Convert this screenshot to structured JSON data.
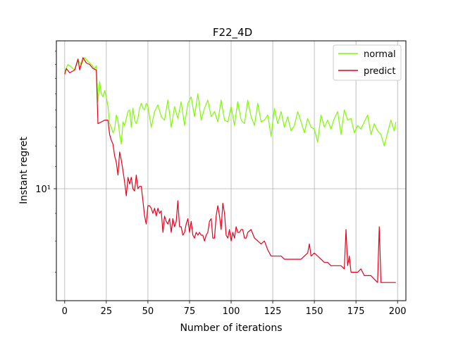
{
  "chart_data": {
    "type": "line",
    "title": "F22_4D",
    "xlabel": "Number of iterations",
    "ylabel": "Instant regret",
    "xlim": [
      -5,
      205
    ],
    "ylim": [
      6.2,
      18.8
    ],
    "yscale": "log",
    "grid": true,
    "legend_position": "top-right",
    "x_ticks": [
      0,
      25,
      50,
      75,
      100,
      125,
      150,
      175,
      200
    ],
    "x_tick_labels": [
      "0",
      "25",
      "50",
      "75",
      "100",
      "125",
      "150",
      "175",
      "200"
    ],
    "y_ticks": [
      10
    ],
    "y_tick_labels": [
      "10¹"
    ],
    "series": [
      {
        "name": "normal",
        "color": "#7cfc00",
        "points": [
          [
            0,
            16.5
          ],
          [
            2,
            17.0
          ],
          [
            4,
            16.8
          ],
          [
            6,
            16.6
          ],
          [
            8,
            17.3
          ],
          [
            10,
            17.0
          ],
          [
            12,
            17.5
          ],
          [
            14,
            17.2
          ],
          [
            16,
            17.0
          ],
          [
            18,
            16.7
          ],
          [
            19,
            16.9
          ],
          [
            20,
            14.5
          ],
          [
            21,
            15.8
          ],
          [
            22,
            15.0
          ],
          [
            23,
            14.8
          ],
          [
            24,
            15.2
          ],
          [
            25,
            14.8
          ],
          [
            26,
            14.2
          ],
          [
            27,
            13.2
          ],
          [
            28,
            13.0
          ],
          [
            29,
            12.7
          ],
          [
            30,
            12.9
          ],
          [
            31,
            13.7
          ],
          [
            32,
            13.4
          ],
          [
            33,
            12.6
          ],
          [
            34,
            12.1
          ],
          [
            35,
            13.3
          ],
          [
            36,
            13.1
          ],
          [
            37,
            13.5
          ],
          [
            38,
            13.9
          ],
          [
            39,
            14.0
          ],
          [
            40,
            13.0
          ],
          [
            41,
            14.1
          ],
          [
            42,
            13.4
          ],
          [
            43,
            13.2
          ],
          [
            44,
            13.5
          ],
          [
            45,
            14.1
          ],
          [
            46,
            14.4
          ],
          [
            47,
            14.1
          ],
          [
            48,
            14.0
          ],
          [
            49,
            14.4
          ],
          [
            50,
            14.2
          ],
          [
            52,
            13.0
          ],
          [
            54,
            13.9
          ],
          [
            56,
            14.3
          ],
          [
            58,
            13.6
          ],
          [
            60,
            13.4
          ],
          [
            62,
            14.6
          ],
          [
            64,
            13.0
          ],
          [
            66,
            14.2
          ],
          [
            68,
            13.5
          ],
          [
            70,
            14.5
          ],
          [
            72,
            13.1
          ],
          [
            74,
            14.4
          ],
          [
            76,
            14.8
          ],
          [
            78,
            13.6
          ],
          [
            80,
            15.0
          ],
          [
            82,
            13.4
          ],
          [
            84,
            14.1
          ],
          [
            86,
            14.6
          ],
          [
            88,
            13.6
          ],
          [
            90,
            13.9
          ],
          [
            92,
            13.3
          ],
          [
            94,
            14.6
          ],
          [
            96,
            13.4
          ],
          [
            98,
            13.3
          ],
          [
            100,
            14.2
          ],
          [
            102,
            13.1
          ],
          [
            104,
            14.5
          ],
          [
            106,
            13.4
          ],
          [
            108,
            13.2
          ],
          [
            110,
            14.6
          ],
          [
            112,
            13.6
          ],
          [
            114,
            13.1
          ],
          [
            116,
            14.4
          ],
          [
            118,
            13.3
          ],
          [
            120,
            13.4
          ],
          [
            122,
            13.7
          ],
          [
            124,
            12.5
          ],
          [
            126,
            14.1
          ],
          [
            128,
            13.2
          ],
          [
            130,
            13.9
          ],
          [
            132,
            13.0
          ],
          [
            134,
            13.6
          ],
          [
            136,
            12.8
          ],
          [
            138,
            13.1
          ],
          [
            140,
            13.9
          ],
          [
            142,
            13.3
          ],
          [
            144,
            12.7
          ],
          [
            146,
            13.5
          ],
          [
            148,
            13.0
          ],
          [
            150,
            12.9
          ],
          [
            152,
            12.2
          ],
          [
            154,
            13.7
          ],
          [
            156,
            13.0
          ],
          [
            158,
            13.4
          ],
          [
            160,
            12.9
          ],
          [
            162,
            13.5
          ],
          [
            164,
            13.9
          ],
          [
            166,
            12.6
          ],
          [
            168,
            14.0
          ],
          [
            170,
            13.4
          ],
          [
            172,
            13.5
          ],
          [
            174,
            12.7
          ],
          [
            176,
            13.1
          ],
          [
            178,
            12.9
          ],
          [
            180,
            13.3
          ],
          [
            182,
            13.7
          ],
          [
            184,
            12.6
          ],
          [
            186,
            13.2
          ],
          [
            188,
            12.8
          ],
          [
            190,
            12.6
          ],
          [
            192,
            12.0
          ],
          [
            194,
            12.7
          ],
          [
            196,
            13.4
          ],
          [
            198,
            12.8
          ],
          [
            199,
            13.3
          ]
        ]
      },
      {
        "name": "predict",
        "color": "#e8001c",
        "points": [
          [
            0,
            16.3
          ],
          [
            1,
            16.7
          ],
          [
            3,
            16.4
          ],
          [
            6,
            16.6
          ],
          [
            8,
            17.4
          ],
          [
            9,
            16.6
          ],
          [
            11,
            17.5
          ],
          [
            13,
            17.1
          ],
          [
            15,
            17.0
          ],
          [
            17,
            16.7
          ],
          [
            19,
            16.6
          ],
          [
            20,
            13.2
          ],
          [
            22,
            13.3
          ],
          [
            24,
            13.4
          ],
          [
            26,
            13.4
          ],
          [
            27,
            12.6
          ],
          [
            28,
            12.3
          ],
          [
            29,
            12.1
          ],
          [
            30,
            11.5
          ],
          [
            31,
            11.2
          ],
          [
            32,
            10.6
          ],
          [
            33,
            11.7
          ],
          [
            34,
            11.3
          ],
          [
            35,
            10.8
          ],
          [
            36,
            10.3
          ],
          [
            37,
            9.7
          ],
          [
            38,
            10.5
          ],
          [
            39,
            10.2
          ],
          [
            40,
            10.5
          ],
          [
            41,
            10.0
          ],
          [
            42,
            9.9
          ],
          [
            43,
            10.6
          ],
          [
            44,
            10.0
          ],
          [
            45,
            10.1
          ],
          [
            46,
            10.1
          ],
          [
            47,
            9.5
          ],
          [
            48,
            8.9
          ],
          [
            49,
            8.6
          ],
          [
            50,
            9.3
          ],
          [
            51,
            9.3
          ],
          [
            52,
            9.2
          ],
          [
            53,
            9.0
          ],
          [
            54,
            9.2
          ],
          [
            55,
            8.9
          ],
          [
            56,
            9.2
          ],
          [
            57,
            9.0
          ],
          [
            58,
            9.1
          ],
          [
            59,
            8.3
          ],
          [
            60,
            8.9
          ],
          [
            61,
            8.7
          ],
          [
            62,
            8.6
          ],
          [
            63,
            8.8
          ],
          [
            64,
            8.3
          ],
          [
            65,
            8.8
          ],
          [
            66,
            8.5
          ],
          [
            67,
            8.7
          ],
          [
            68,
            9.5
          ],
          [
            69,
            8.5
          ],
          [
            70,
            8.5
          ],
          [
            71,
            8.2
          ],
          [
            72,
            8.3
          ],
          [
            73,
            8.6
          ],
          [
            74,
            8.8
          ],
          [
            75,
            8.3
          ],
          [
            76,
            8.7
          ],
          [
            77,
            8.2
          ],
          [
            78,
            8.1
          ],
          [
            79,
            8.3
          ],
          [
            80,
            8.2
          ],
          [
            81,
            8.3
          ],
          [
            82,
            8.2
          ],
          [
            83,
            8.2
          ],
          [
            84,
            8.0
          ],
          [
            85,
            8.2
          ],
          [
            86,
            8.3
          ],
          [
            87,
            8.7
          ],
          [
            88,
            8.8
          ],
          [
            89,
            8.1
          ],
          [
            90,
            8.1
          ],
          [
            91,
            8.9
          ],
          [
            92,
            9.3
          ],
          [
            93,
            8.9
          ],
          [
            94,
            8.4
          ],
          [
            95,
            9.4
          ],
          [
            96,
            9.0
          ],
          [
            97,
            8.2
          ],
          [
            98,
            8.1
          ],
          [
            99,
            8.4
          ],
          [
            100,
            8.0
          ],
          [
            101,
            8.3
          ],
          [
            102,
            8.1
          ],
          [
            103,
            8.5
          ],
          [
            104,
            8.3
          ],
          [
            105,
            8.3
          ],
          [
            106,
            8.4
          ],
          [
            107,
            8.4
          ],
          [
            108,
            8.1
          ],
          [
            109,
            8.1
          ],
          [
            110,
            8.3
          ],
          [
            112,
            8.4
          ],
          [
            114,
            8.1
          ],
          [
            116,
            8.0
          ],
          [
            118,
            7.9
          ],
          [
            120,
            8.0
          ],
          [
            122,
            7.7
          ],
          [
            124,
            7.5
          ],
          [
            126,
            7.5
          ],
          [
            128,
            7.5
          ],
          [
            130,
            7.5
          ],
          [
            132,
            7.4
          ],
          [
            134,
            7.4
          ],
          [
            136,
            7.4
          ],
          [
            138,
            7.4
          ],
          [
            140,
            7.4
          ],
          [
            142,
            7.4
          ],
          [
            144,
            7.5
          ],
          [
            146,
            7.6
          ],
          [
            147,
            7.9
          ],
          [
            148,
            7.5
          ],
          [
            150,
            7.6
          ],
          [
            152,
            7.5
          ],
          [
            154,
            7.4
          ],
          [
            156,
            7.3
          ],
          [
            158,
            7.3
          ],
          [
            160,
            7.2
          ],
          [
            162,
            7.2
          ],
          [
            164,
            7.2
          ],
          [
            166,
            7.2
          ],
          [
            168,
            7.1
          ],
          [
            169,
            8.4
          ],
          [
            170,
            7.2
          ],
          [
            171,
            7.5
          ],
          [
            172,
            7.0
          ],
          [
            174,
            7.0
          ],
          [
            176,
            7.0
          ],
          [
            178,
            7.1
          ],
          [
            180,
            6.9
          ],
          [
            182,
            6.9
          ],
          [
            184,
            6.9
          ],
          [
            186,
            6.8
          ],
          [
            188,
            6.7
          ],
          [
            189,
            8.5
          ],
          [
            190,
            6.7
          ],
          [
            192,
            6.7
          ],
          [
            194,
            6.7
          ],
          [
            196,
            6.7
          ],
          [
            198,
            6.7
          ],
          [
            199,
            6.7
          ]
        ]
      }
    ]
  }
}
